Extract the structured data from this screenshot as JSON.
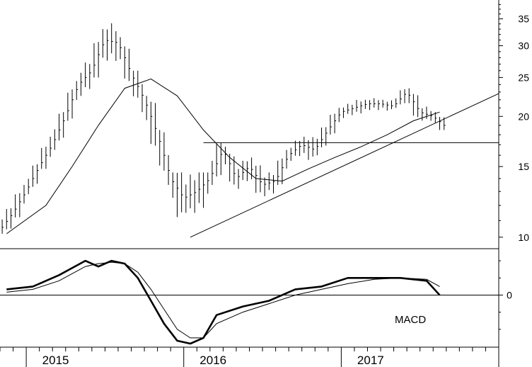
{
  "chart_data": [
    {
      "type": "bar",
      "subtype": "ohlc",
      "title": "",
      "xlabel": "",
      "ylabel": "",
      "yscale": "log",
      "ylim": [
        9.4,
        39
      ],
      "yticks": [
        10,
        15,
        20,
        25,
        30,
        35
      ],
      "x_tick_labels": [
        "2015",
        "2016",
        "2017"
      ],
      "xlim": [
        "2014-10",
        "2017-12"
      ],
      "grid": false,
      "legend": "none",
      "colors": {
        "price": "#000000",
        "moving_average": "#000000",
        "lines": "#000000"
      },
      "series": [
        {
          "name": "",
          "kind": "monthly-ohlc-bars",
          "x": [
            "2014-10",
            "2014-11",
            "2014-12",
            "2015-01",
            "2015-02",
            "2015-03",
            "2015-04",
            "2015-05",
            "2015-06",
            "2015-07",
            "2015-08",
            "2015-09",
            "2015-10",
            "2015-11",
            "2015-12",
            "2016-01",
            "2016-02",
            "2016-03",
            "2016-04",
            "2016-05",
            "2016-06",
            "2016-07",
            "2016-08",
            "2016-09",
            "2016-10",
            "2016-11",
            "2016-12",
            "2017-01",
            "2017-02",
            "2017-03",
            "2017-04",
            "2017-05",
            "2017-06",
            "2017-07"
          ],
          "ohlc": [
            [
              10.4,
              12.0,
              10.2,
              11.5
            ],
            [
              11.5,
              13.5,
              11.2,
              13.0
            ],
            [
              13.0,
              15.2,
              12.8,
              15.0
            ],
            [
              15.0,
              17.8,
              14.8,
              17.0
            ],
            [
              17.0,
              20.5,
              16.5,
              20.0
            ],
            [
              20.0,
              24.5,
              19.5,
              24.0
            ],
            [
              24.0,
              27.5,
              22.5,
              26.0
            ],
            [
              26.0,
              33.0,
              25.0,
              31.0
            ],
            [
              31.0,
              35.0,
              27.5,
              30.5
            ],
            [
              30.5,
              31.5,
              24.5,
              25.5
            ],
            [
              25.5,
              26.0,
              20.5,
              22.0
            ],
            [
              22.0,
              22.5,
              16.0,
              18.0
            ],
            [
              18.0,
              18.5,
              13.5,
              14.0
            ],
            [
              14.0,
              14.5,
              10.0,
              12.5
            ],
            [
              12.5,
              15.0,
              11.5,
              13.0
            ],
            [
              13.0,
              14.5,
              10.8,
              14.0
            ],
            [
              14.0,
              17.5,
              13.5,
              16.5
            ],
            [
              16.5,
              16.8,
              13.5,
              14.0
            ],
            [
              14.0,
              15.5,
              13.2,
              15.0
            ],
            [
              15.0,
              15.8,
              12.8,
              13.5
            ],
            [
              13.5,
              14.5,
              12.5,
              13.8
            ],
            [
              13.8,
              16.5,
              13.5,
              16.0
            ],
            [
              16.0,
              17.5,
              15.5,
              17.0
            ],
            [
              17.0,
              17.8,
              15.2,
              16.5
            ],
            [
              16.5,
              18.8,
              16.0,
              18.5
            ],
            [
              18.5,
              21.0,
              18.0,
              20.5
            ],
            [
              20.5,
              21.5,
              19.8,
              21.0
            ],
            [
              21.0,
              22.0,
              20.0,
              21.5
            ],
            [
              21.5,
              22.2,
              20.5,
              21.5
            ],
            [
              21.5,
              22.0,
              20.5,
              21.2
            ],
            [
              21.2,
              23.5,
              21.0,
              23.0
            ],
            [
              23.0,
              23.5,
              19.8,
              20.5
            ],
            [
              20.5,
              21.5,
              19.5,
              20.0
            ],
            [
              20.0,
              20.5,
              18.5,
              18.8
            ]
          ]
        },
        {
          "name": "",
          "kind": "moving-average-line",
          "x": [
            "2014-10",
            "2015-01",
            "2015-03",
            "2015-05",
            "2015-07",
            "2015-09",
            "2015-11",
            "2016-01",
            "2016-03",
            "2016-05",
            "2016-07",
            "2016-09",
            "2016-11",
            "2017-01",
            "2017-03",
            "2017-05",
            "2017-07"
          ],
          "values": [
            10.2,
            12.0,
            15.0,
            19.0,
            23.5,
            24.8,
            22.5,
            18.5,
            15.8,
            14.0,
            13.8,
            14.8,
            15.8,
            16.8,
            18.0,
            19.5,
            20.5
          ]
        }
      ],
      "annotations": [
        {
          "kind": "trendline",
          "from": [
            "2015-12",
            10.0
          ],
          "to": [
            "2017-12",
            22.8
          ]
        },
        {
          "kind": "horizontal-line",
          "from": "2016-01",
          "to": "2017-12",
          "value": 17.2
        }
      ]
    },
    {
      "type": "line",
      "title": "",
      "label": "MACD",
      "xlabel": "",
      "ylabel": "",
      "ylim": [
        -1.8,
        1.6
      ],
      "yticks": [
        0
      ],
      "grid": false,
      "legend": "none",
      "colors": {
        "macd": "#000000",
        "signal": "#000000"
      },
      "x": [
        "2014-10",
        "2014-12",
        "2015-02",
        "2015-04",
        "2015-05",
        "2015-06",
        "2015-07",
        "2015-08",
        "2015-09",
        "2015-10",
        "2015-11",
        "2015-12",
        "2016-01",
        "2016-02",
        "2016-04",
        "2016-06",
        "2016-08",
        "2016-10",
        "2016-12",
        "2017-02",
        "2017-04",
        "2017-06",
        "2017-07"
      ],
      "series": [
        {
          "name": "",
          "role": "macd",
          "values": [
            0.2,
            0.3,
            0.7,
            1.2,
            1.0,
            1.2,
            1.1,
            0.6,
            -0.2,
            -1.0,
            -1.6,
            -1.7,
            -1.5,
            -0.7,
            -0.4,
            -0.2,
            0.2,
            0.3,
            0.6,
            0.6,
            0.6,
            0.5,
            0.0
          ]
        },
        {
          "name": "",
          "role": "signal",
          "values": [
            0.1,
            0.2,
            0.5,
            1.0,
            1.1,
            1.15,
            1.1,
            0.8,
            0.2,
            -0.5,
            -1.2,
            -1.5,
            -1.5,
            -1.0,
            -0.6,
            -0.3,
            0.0,
            0.2,
            0.4,
            0.55,
            0.6,
            0.55,
            0.3
          ]
        }
      ]
    }
  ]
}
